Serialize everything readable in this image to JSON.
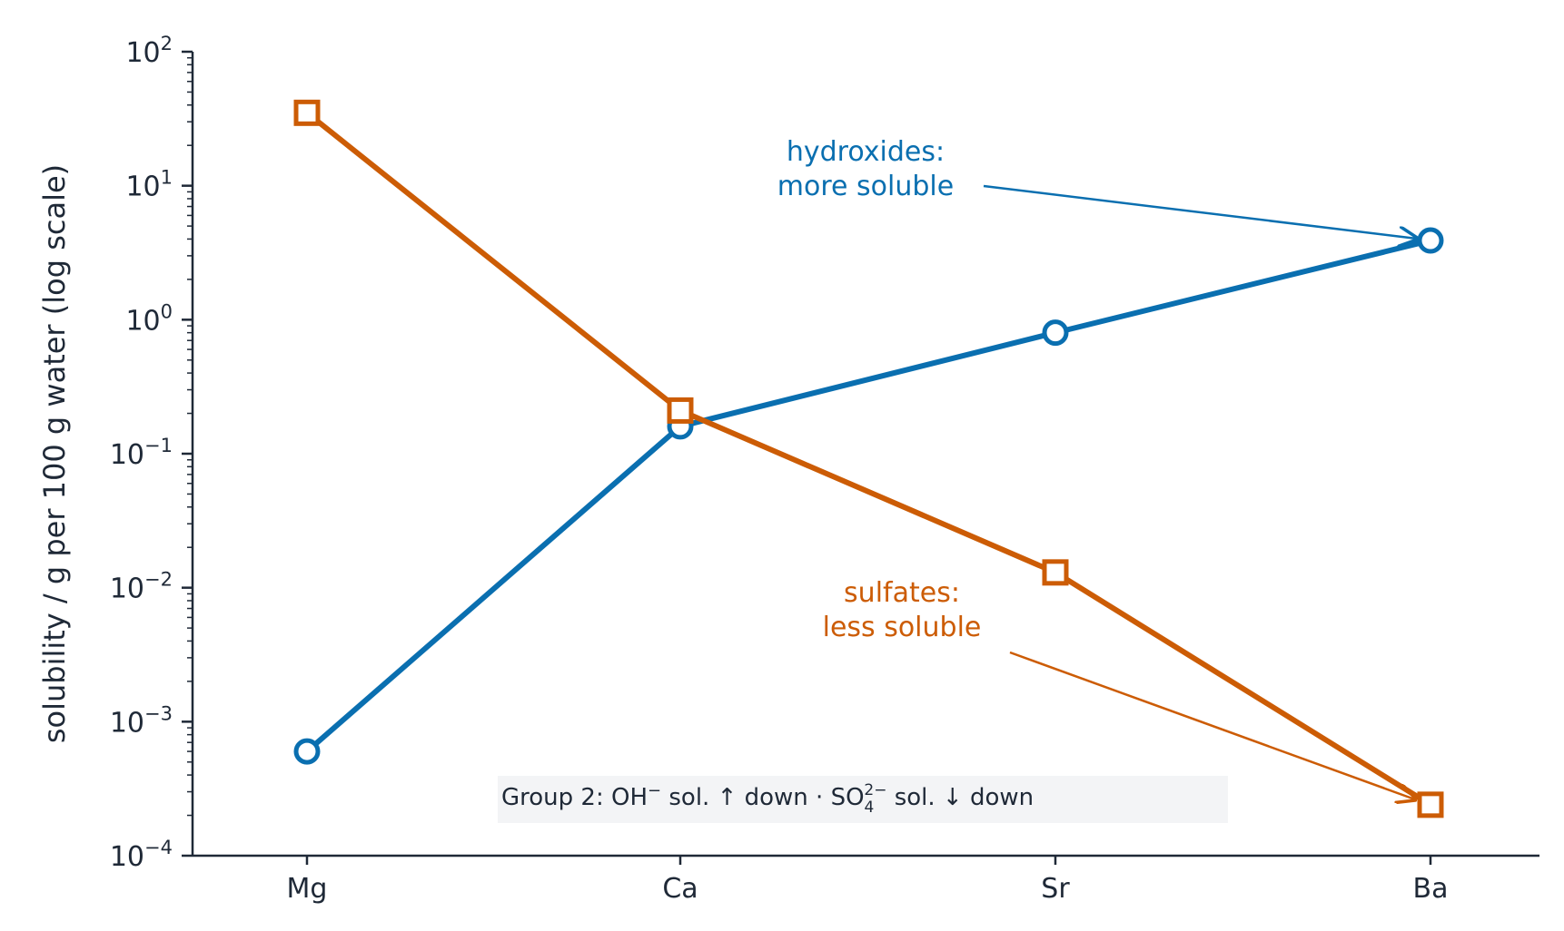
{
  "chart_data": {
    "type": "line",
    "categories": [
      "Mg",
      "Ca",
      "Sr",
      "Ba"
    ],
    "ylabel": "solubility / g per 100 g water  (log scale)",
    "yscale": "log",
    "ylim": [
      0.0001,
      100
    ],
    "y_ticks": [
      {
        "base": "10",
        "exp": "−4"
      },
      {
        "base": "10",
        "exp": "−3"
      },
      {
        "base": "10",
        "exp": "−2"
      },
      {
        "base": "10",
        "exp": "−1"
      },
      {
        "base": "10",
        "exp": "0"
      },
      {
        "base": "10",
        "exp": "1"
      },
      {
        "base": "10",
        "exp": "2"
      }
    ],
    "grid": false,
    "series": [
      {
        "key": "hydroxides",
        "marker": "circle",
        "color": "#0a6fb0",
        "values": [
          0.0006,
          0.16,
          0.8,
          3.9
        ]
      },
      {
        "key": "sulfates",
        "marker": "square",
        "color": "#cc5c05",
        "values": [
          35,
          0.21,
          0.013,
          0.00024
        ]
      }
    ],
    "annotations": {
      "hydroxides": {
        "lines": [
          "hydroxides:",
          "more soluble"
        ],
        "color": "#0a6fb0",
        "points_to": "Ba"
      },
      "sulfates": {
        "lines": [
          "sulfates:",
          "less soluble"
        ],
        "color": "#cc5c05",
        "points_to": "Ba"
      }
    },
    "note": {
      "prefix": "Group 2: OH",
      "oh_charge": "−",
      "middle": " sol.  ↑  down  ·  SO",
      "so4_sub": "4",
      "so4_sup": "2−",
      "suffix": " sol.  ↓  down",
      "background": "#f3f4f6"
    }
  }
}
